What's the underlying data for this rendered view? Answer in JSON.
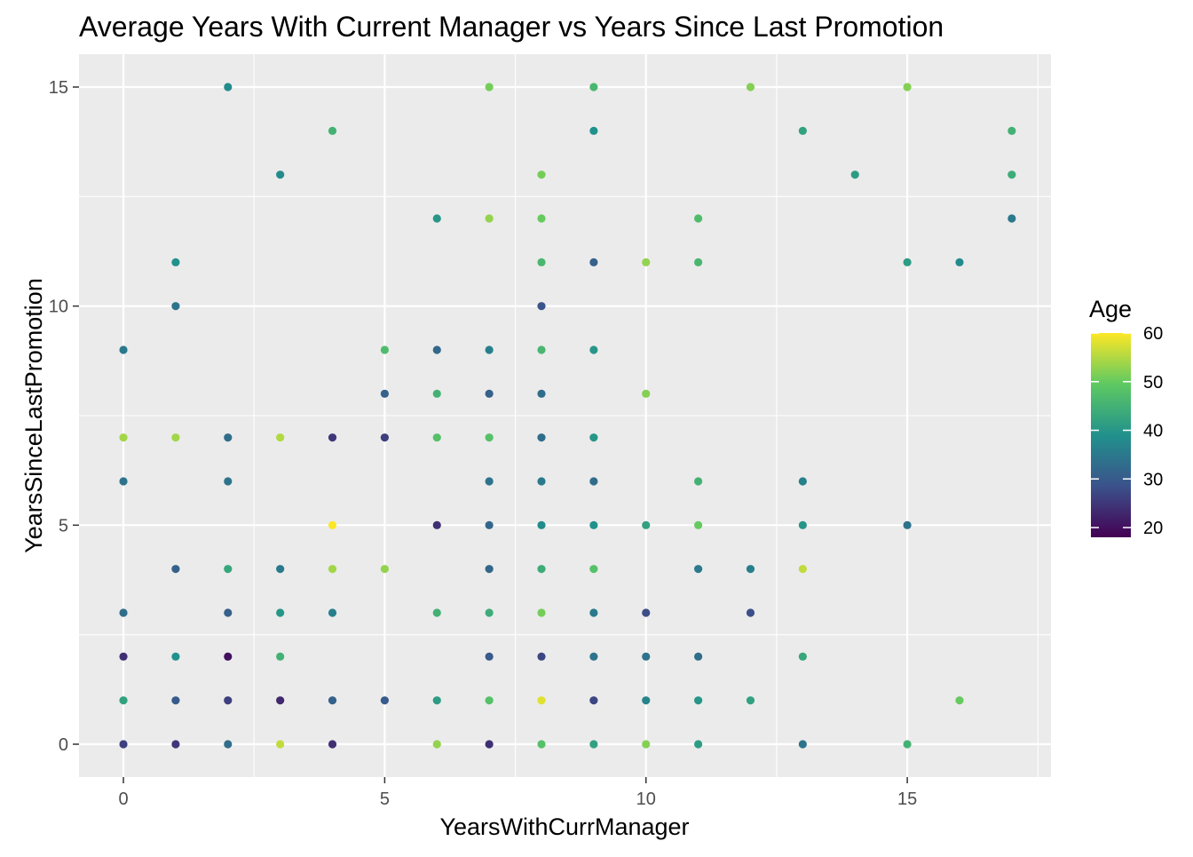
{
  "chart_data": {
    "type": "scatter",
    "title": "Average Years With Current Manager vs Years Since Last Promotion",
    "xlabel": "YearsWithCurrManager",
    "ylabel": "YearsSinceLastPromotion",
    "xlim": [
      -0.85,
      17.75
    ],
    "ylim": [
      -0.75,
      15.75
    ],
    "x_ticks": [
      0,
      5,
      10,
      15
    ],
    "y_ticks": [
      0,
      5,
      10,
      15
    ],
    "grid": true,
    "legend": {
      "title": "Age",
      "placement": "right",
      "min": 18,
      "max": 60,
      "ticks": [
        20,
        30,
        40,
        50,
        60
      ],
      "colormap": [
        "#440154",
        "#3b528b",
        "#21918c",
        "#5ec962",
        "#fde725"
      ]
    },
    "points": [
      {
        "x": 0,
        "y": 0,
        "age": 26
      },
      {
        "x": 0,
        "y": 1,
        "age": 42
      },
      {
        "x": 0,
        "y": 2,
        "age": 24
      },
      {
        "x": 0,
        "y": 3,
        "age": 33
      },
      {
        "x": 0,
        "y": 6,
        "age": 34
      },
      {
        "x": 0,
        "y": 7,
        "age": 54
      },
      {
        "x": 0,
        "y": 9,
        "age": 35
      },
      {
        "x": 1,
        "y": 0,
        "age": 25
      },
      {
        "x": 1,
        "y": 1,
        "age": 30
      },
      {
        "x": 1,
        "y": 2,
        "age": 39
      },
      {
        "x": 1,
        "y": 4,
        "age": 31
      },
      {
        "x": 1,
        "y": 7,
        "age": 54
      },
      {
        "x": 1,
        "y": 10,
        "age": 34
      },
      {
        "x": 1,
        "y": 11,
        "age": 39
      },
      {
        "x": 2,
        "y": 0,
        "age": 33
      },
      {
        "x": 2,
        "y": 1,
        "age": 26
      },
      {
        "x": 2,
        "y": 2,
        "age": 20
      },
      {
        "x": 2,
        "y": 3,
        "age": 31
      },
      {
        "x": 2,
        "y": 4,
        "age": 43
      },
      {
        "x": 2,
        "y": 6,
        "age": 34
      },
      {
        "x": 2,
        "y": 7,
        "age": 33
      },
      {
        "x": 2,
        "y": 15,
        "age": 38
      },
      {
        "x": 3,
        "y": 0,
        "age": 56
      },
      {
        "x": 3,
        "y": 1,
        "age": 23
      },
      {
        "x": 3,
        "y": 2,
        "age": 45
      },
      {
        "x": 3,
        "y": 3,
        "age": 40
      },
      {
        "x": 3,
        "y": 4,
        "age": 35
      },
      {
        "x": 3,
        "y": 7,
        "age": 55
      },
      {
        "x": 3,
        "y": 13,
        "age": 38
      },
      {
        "x": 4,
        "y": 0,
        "age": 24
      },
      {
        "x": 4,
        "y": 1,
        "age": 31
      },
      {
        "x": 4,
        "y": 3,
        "age": 36
      },
      {
        "x": 4,
        "y": 4,
        "age": 54
      },
      {
        "x": 4,
        "y": 5,
        "age": 60
      },
      {
        "x": 4,
        "y": 7,
        "age": 25
      },
      {
        "x": 4,
        "y": 14,
        "age": 45
      },
      {
        "x": 5,
        "y": 1,
        "age": 30
      },
      {
        "x": 5,
        "y": 4,
        "age": 53
      },
      {
        "x": 5,
        "y": 7,
        "age": 26
      },
      {
        "x": 5,
        "y": 8,
        "age": 31
      },
      {
        "x": 5,
        "y": 9,
        "age": 47
      },
      {
        "x": 6,
        "y": 0,
        "age": 53
      },
      {
        "x": 6,
        "y": 1,
        "age": 41
      },
      {
        "x": 6,
        "y": 3,
        "age": 45
      },
      {
        "x": 6,
        "y": 5,
        "age": 24
      },
      {
        "x": 6,
        "y": 7,
        "age": 48
      },
      {
        "x": 6,
        "y": 8,
        "age": 45
      },
      {
        "x": 6,
        "y": 9,
        "age": 32
      },
      {
        "x": 6,
        "y": 12,
        "age": 40
      },
      {
        "x": 7,
        "y": 0,
        "age": 24
      },
      {
        "x": 7,
        "y": 1,
        "age": 48
      },
      {
        "x": 7,
        "y": 2,
        "age": 30
      },
      {
        "x": 7,
        "y": 3,
        "age": 44
      },
      {
        "x": 7,
        "y": 4,
        "age": 32
      },
      {
        "x": 7,
        "y": 5,
        "age": 32
      },
      {
        "x": 7,
        "y": 6,
        "age": 34
      },
      {
        "x": 7,
        "y": 7,
        "age": 48
      },
      {
        "x": 7,
        "y": 8,
        "age": 31
      },
      {
        "x": 7,
        "y": 9,
        "age": 36
      },
      {
        "x": 7,
        "y": 12,
        "age": 53
      },
      {
        "x": 7,
        "y": 15,
        "age": 51
      },
      {
        "x": 8,
        "y": 0,
        "age": 48
      },
      {
        "x": 8,
        "y": 1,
        "age": 58
      },
      {
        "x": 8,
        "y": 2,
        "age": 27
      },
      {
        "x": 8,
        "y": 3,
        "age": 51
      },
      {
        "x": 8,
        "y": 4,
        "age": 44
      },
      {
        "x": 8,
        "y": 5,
        "age": 38
      },
      {
        "x": 8,
        "y": 6,
        "age": 35
      },
      {
        "x": 8,
        "y": 7,
        "age": 33
      },
      {
        "x": 8,
        "y": 8,
        "age": 33
      },
      {
        "x": 8,
        "y": 9,
        "age": 46
      },
      {
        "x": 8,
        "y": 10,
        "age": 29
      },
      {
        "x": 8,
        "y": 11,
        "age": 46
      },
      {
        "x": 8,
        "y": 12,
        "age": 50
      },
      {
        "x": 8,
        "y": 13,
        "age": 51
      },
      {
        "x": 9,
        "y": 0,
        "age": 42
      },
      {
        "x": 9,
        "y": 1,
        "age": 27
      },
      {
        "x": 9,
        "y": 2,
        "age": 34
      },
      {
        "x": 9,
        "y": 3,
        "age": 35
      },
      {
        "x": 9,
        "y": 4,
        "age": 48
      },
      {
        "x": 9,
        "y": 5,
        "age": 39
      },
      {
        "x": 9,
        "y": 6,
        "age": 33
      },
      {
        "x": 9,
        "y": 7,
        "age": 40
      },
      {
        "x": 9,
        "y": 9,
        "age": 40
      },
      {
        "x": 9,
        "y": 11,
        "age": 31
      },
      {
        "x": 9,
        "y": 14,
        "age": 39
      },
      {
        "x": 9,
        "y": 15,
        "age": 46
      },
      {
        "x": 10,
        "y": 0,
        "age": 52
      },
      {
        "x": 10,
        "y": 1,
        "age": 37
      },
      {
        "x": 10,
        "y": 2,
        "age": 34
      },
      {
        "x": 10,
        "y": 3,
        "age": 28
      },
      {
        "x": 10,
        "y": 5,
        "age": 42
      },
      {
        "x": 10,
        "y": 8,
        "age": 52
      },
      {
        "x": 10,
        "y": 11,
        "age": 53
      },
      {
        "x": 11,
        "y": 0,
        "age": 41
      },
      {
        "x": 11,
        "y": 1,
        "age": 40
      },
      {
        "x": 11,
        "y": 2,
        "age": 33
      },
      {
        "x": 11,
        "y": 4,
        "age": 35
      },
      {
        "x": 11,
        "y": 5,
        "age": 50
      },
      {
        "x": 11,
        "y": 6,
        "age": 45
      },
      {
        "x": 11,
        "y": 11,
        "age": 46
      },
      {
        "x": 11,
        "y": 12,
        "age": 47
      },
      {
        "x": 12,
        "y": 1,
        "age": 42
      },
      {
        "x": 12,
        "y": 3,
        "age": 28
      },
      {
        "x": 12,
        "y": 4,
        "age": 36
      },
      {
        "x": 12,
        "y": 15,
        "age": 52
      },
      {
        "x": 13,
        "y": 0,
        "age": 34
      },
      {
        "x": 13,
        "y": 2,
        "age": 43
      },
      {
        "x": 13,
        "y": 4,
        "age": 56
      },
      {
        "x": 13,
        "y": 5,
        "age": 40
      },
      {
        "x": 13,
        "y": 6,
        "age": 36
      },
      {
        "x": 13,
        "y": 14,
        "age": 42
      },
      {
        "x": 14,
        "y": 13,
        "age": 41
      },
      {
        "x": 15,
        "y": 0,
        "age": 45
      },
      {
        "x": 15,
        "y": 5,
        "age": 34
      },
      {
        "x": 15,
        "y": 11,
        "age": 41
      },
      {
        "x": 15,
        "y": 15,
        "age": 52
      },
      {
        "x": 16,
        "y": 1,
        "age": 50
      },
      {
        "x": 16,
        "y": 11,
        "age": 38
      },
      {
        "x": 17,
        "y": 12,
        "age": 35
      },
      {
        "x": 17,
        "y": 13,
        "age": 44
      },
      {
        "x": 17,
        "y": 14,
        "age": 45
      }
    ]
  }
}
